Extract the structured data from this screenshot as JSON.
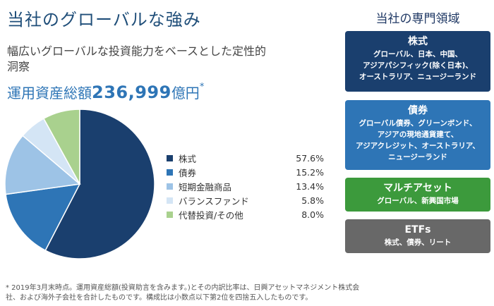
{
  "title": "当社のグローバルな強み",
  "subtitle": "幅広いグローバルな投資能力をベースとした定性的洞察",
  "aum": {
    "label": "運用資産総額",
    "value": "236,999",
    "unit": "億円",
    "mark": "*"
  },
  "chart_data": {
    "type": "pie",
    "categories": [
      "株式",
      "債券",
      "短期金融商品",
      "バランスファンド",
      "代替投資/その他"
    ],
    "values": [
      57.6,
      15.2,
      13.4,
      5.8,
      8.0
    ],
    "value_labels": [
      "57.6%",
      "15.2%",
      "13.4%",
      "5.8%",
      "8.0%"
    ],
    "colors": [
      "#1a3f6e",
      "#2e75b6",
      "#9dc3e6",
      "#d4e5f5",
      "#a9d18e"
    ],
    "legend_position": "right"
  },
  "expertise": {
    "title": "当社の専門領域",
    "boxes": [
      {
        "title": "株式",
        "desc": [
          "グローバル、日本、中国、",
          "アジアパシフィック(除く日本)、",
          "オーストラリア、ニュージーランド"
        ],
        "color": "#1a3f6e"
      },
      {
        "title": "債券",
        "desc": [
          "グローバル債券、グリーンボンド、",
          "アジアの現地通貨建て、",
          "アジアクレジット、オーストラリア、",
          "ニュージーランド"
        ],
        "color": "#2e75b6"
      },
      {
        "title": "マルチアセット",
        "desc": [
          "グローバル、新興国市場"
        ],
        "color": "#3c9a3c"
      },
      {
        "title": "ETFs",
        "desc": [
          "株式、債券、リート"
        ],
        "color": "#686868"
      }
    ]
  },
  "footnote": [
    "* 2019年3月末時点。運用資産総額(投資助言を含みます。)とその内訳比率は、日興アセットマネジメント株式会",
    "社、および海外子会社を合計したものです。構成比は小数点以下第2位を四捨五入したものです。"
  ]
}
